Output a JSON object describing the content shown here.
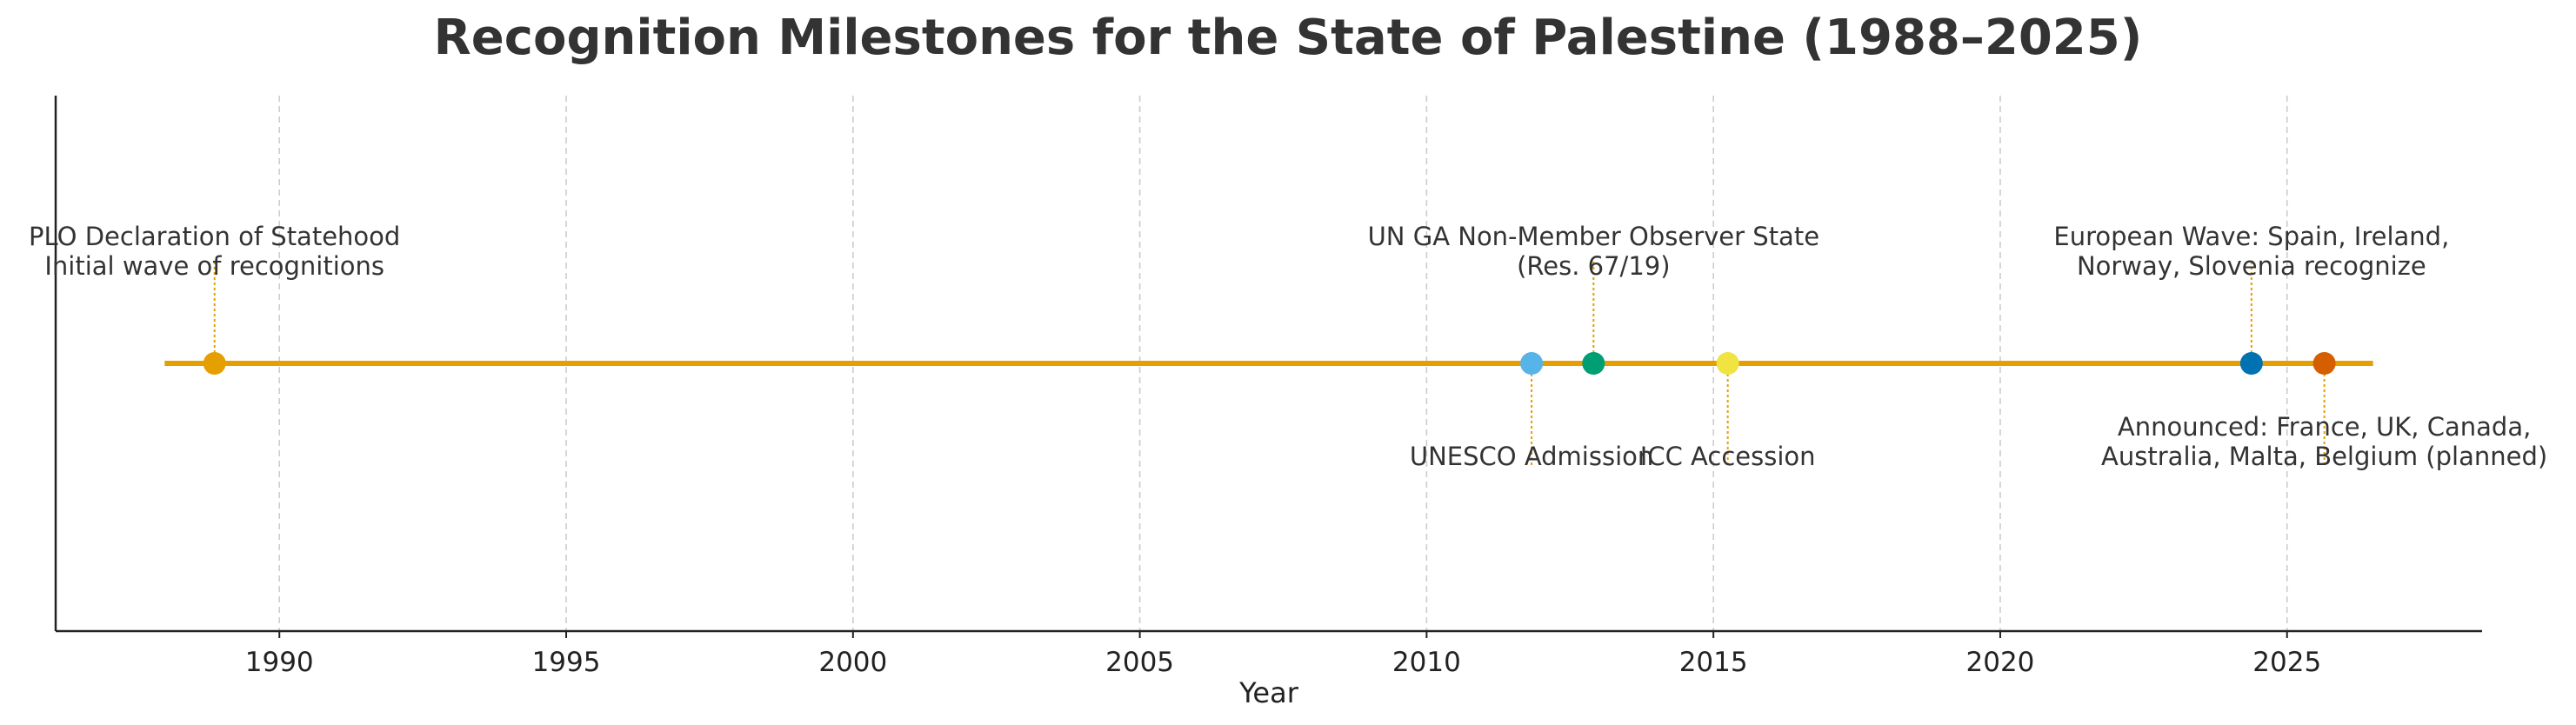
{
  "chart_data": {
    "type": "timeline",
    "title": "Recognition Milestones for the State of Palestine (1988–2025)",
    "xlabel": "Year",
    "ylabel": "",
    "xlim": [
      1986.1,
      2028.4
    ],
    "xticks": [
      1990,
      1995,
      2000,
      2005,
      2010,
      2015,
      2020,
      2025
    ],
    "timeline_span": [
      1988.0,
      2026.5
    ],
    "grid": "vertical",
    "line_color": "#E69F00",
    "events": [
      {
        "date": 1988.87,
        "label_lines": [
          "PLO Declaration of Statehood",
          "Initial wave of recognitions"
        ],
        "position": "above",
        "color": "#E69F00"
      },
      {
        "date": 2011.83,
        "label_lines": [
          "UNESCO Admission"
        ],
        "position": "below",
        "color": "#56B4E9"
      },
      {
        "date": 2012.91,
        "label_lines": [
          "UN GA Non-Member Observer State",
          "(Res. 67/19)"
        ],
        "position": "above",
        "color": "#009E73"
      },
      {
        "date": 2015.25,
        "label_lines": [
          "ICC Accession"
        ],
        "position": "below",
        "color": "#F0E442"
      },
      {
        "date": 2024.38,
        "label_lines": [
          "European Wave: Spain, Ireland,",
          "Norway, Slovenia recognize"
        ],
        "position": "above",
        "color": "#0072B2"
      },
      {
        "date": 2025.65,
        "label_lines": [
          "Announced: France, UK, Canada,",
          "Australia, Malta, Belgium (planned)"
        ],
        "position": "below",
        "color": "#D55E00"
      }
    ]
  }
}
